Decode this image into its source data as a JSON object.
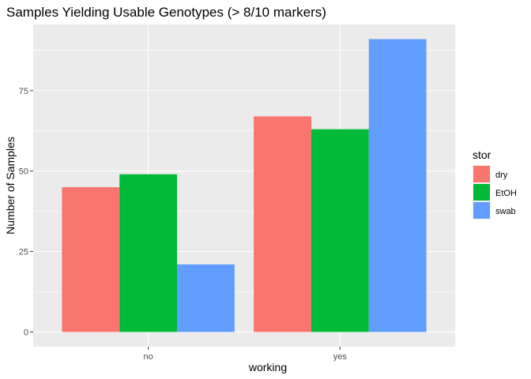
{
  "chart_data": {
    "type": "bar",
    "title": "Samples Yielding Usable Genotypes (> 8/10 markers)",
    "xlabel": "working",
    "ylabel": "Number of Samples",
    "categories": [
      "no",
      "yes"
    ],
    "series": [
      {
        "name": "dry",
        "color": "#F8766D",
        "values": [
          45,
          67
        ]
      },
      {
        "name": "EtOH",
        "color": "#00BA38",
        "values": [
          49,
          63
        ]
      },
      {
        "name": "swab",
        "color": "#619CFF",
        "values": [
          21,
          91
        ]
      }
    ],
    "yticks": [
      0,
      25,
      50,
      75
    ],
    "ylim": [
      -4.55,
      95.55
    ],
    "grid": true,
    "legend": {
      "title": "stor",
      "placement": "right"
    }
  }
}
